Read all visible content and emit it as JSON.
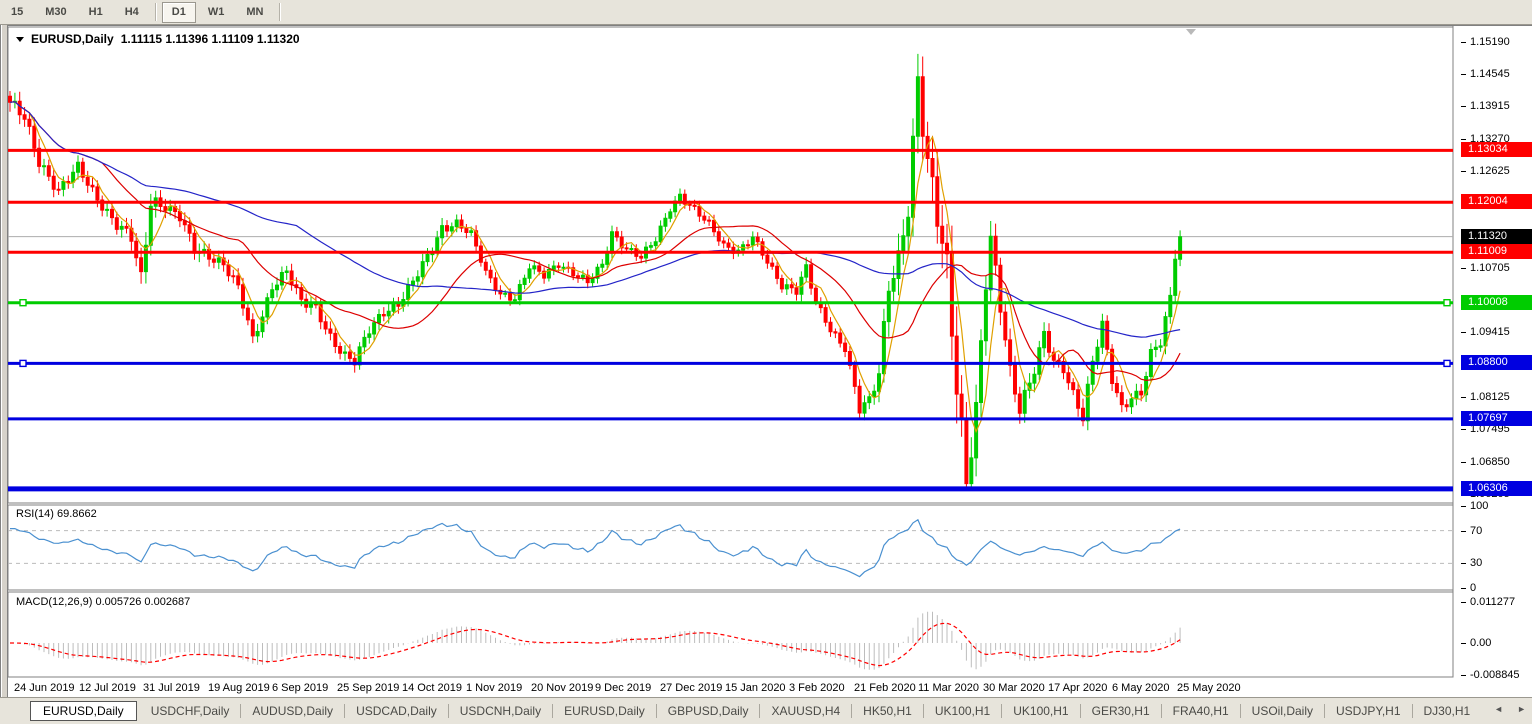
{
  "toolbar": {
    "items": [
      {
        "type": "button",
        "label": "15",
        "active": false
      },
      {
        "type": "button",
        "label": "M30",
        "active": false
      },
      {
        "type": "button",
        "label": "H1",
        "active": false
      },
      {
        "type": "button",
        "label": "H4",
        "active": false
      },
      {
        "type": "separator"
      },
      {
        "type": "button",
        "label": "D1",
        "active": true
      },
      {
        "type": "button",
        "label": "W1",
        "active": false
      },
      {
        "type": "button",
        "label": "MN",
        "active": false
      },
      {
        "type": "separator"
      }
    ]
  },
  "chart": {
    "symbol_label": "EURUSD,Daily",
    "ohlc_label": "1.11115 1.11396 1.11109 1.11320"
  },
  "chart_data": {
    "type": "candlestick",
    "symbol": "EURUSD",
    "timeframe": "Daily",
    "open": "1.11115",
    "high": "1.11396",
    "low": "1.11109",
    "close": "1.11320",
    "bar_count": 242,
    "candle_up_color": "#00CC00",
    "candle_down_color": "#FF0000",
    "price_anchors": [
      [
        0,
        1.1395,
        0.005
      ],
      [
        3,
        1.1368,
        0.005
      ],
      [
        6,
        1.1285,
        0.005
      ],
      [
        10,
        1.1222,
        0.004
      ],
      [
        14,
        1.1268,
        0.004
      ],
      [
        18,
        1.121,
        0.004
      ],
      [
        22,
        1.1155,
        0.004
      ],
      [
        25,
        1.1128,
        0.005
      ],
      [
        27,
        1.1045,
        0.007
      ],
      [
        29,
        1.1205,
        0.007
      ],
      [
        32,
        1.1195,
        0.004
      ],
      [
        35,
        1.117,
        0.004
      ],
      [
        38,
        1.1105,
        0.005
      ],
      [
        41,
        1.1095,
        0.004
      ],
      [
        44,
        1.108,
        0.004
      ],
      [
        47,
        1.103,
        0.004
      ],
      [
        50,
        1.0925,
        0.004
      ],
      [
        52,
        1.0975,
        0.004
      ],
      [
        54,
        1.1035,
        0.004
      ],
      [
        57,
        1.1065,
        0.004
      ],
      [
        60,
        1.1,
        0.004
      ],
      [
        63,
        1.099,
        0.004
      ],
      [
        66,
        1.0935,
        0.004
      ],
      [
        69,
        1.0895,
        0.004
      ],
      [
        71,
        1.0882,
        0.004
      ],
      [
        74,
        1.0945,
        0.004
      ],
      [
        77,
        1.0985,
        0.004
      ],
      [
        80,
        1.1,
        0.004
      ],
      [
        83,
        1.104,
        0.004
      ],
      [
        86,
        1.109,
        0.004
      ],
      [
        89,
        1.115,
        0.004
      ],
      [
        92,
        1.116,
        0.003
      ],
      [
        95,
        1.1135,
        0.003
      ],
      [
        98,
        1.106,
        0.003
      ],
      [
        101,
        1.102,
        0.003
      ],
      [
        104,
        1.101,
        0.003
      ],
      [
        107,
        1.107,
        0.003
      ],
      [
        110,
        1.1055,
        0.003
      ],
      [
        113,
        1.108,
        0.003
      ],
      [
        116,
        1.106,
        0.003
      ],
      [
        119,
        1.104,
        0.003
      ],
      [
        122,
        1.1075,
        0.003
      ],
      [
        124,
        1.114,
        0.004
      ],
      [
        127,
        1.111,
        0.003
      ],
      [
        130,
        1.109,
        0.003
      ],
      [
        133,
        1.1125,
        0.003
      ],
      [
        136,
        1.119,
        0.003
      ],
      [
        138,
        1.1215,
        0.003
      ],
      [
        141,
        1.1185,
        0.003
      ],
      [
        144,
        1.1155,
        0.003
      ],
      [
        147,
        1.1115,
        0.003
      ],
      [
        150,
        1.1105,
        0.003
      ],
      [
        153,
        1.113,
        0.003
      ],
      [
        156,
        1.108,
        0.003
      ],
      [
        159,
        1.1035,
        0.003
      ],
      [
        162,
        1.103,
        0.004
      ],
      [
        164,
        1.107,
        0.004
      ],
      [
        166,
        1.1,
        0.003
      ],
      [
        169,
        1.0945,
        0.003
      ],
      [
        172,
        1.0912,
        0.003
      ],
      [
        174,
        1.0835,
        0.004
      ],
      [
        175,
        1.0792,
        0.004
      ],
      [
        177,
        1.0805,
        0.004
      ],
      [
        179,
        1.0855,
        0.006
      ],
      [
        181,
        1.103,
        0.008
      ],
      [
        183,
        1.109,
        0.009
      ],
      [
        185,
        1.12,
        0.01
      ],
      [
        187,
        1.1445,
        0.012
      ],
      [
        189,
        1.127,
        0.013
      ],
      [
        191,
        1.1165,
        0.013
      ],
      [
        193,
        1.106,
        0.015
      ],
      [
        195,
        1.085,
        0.016
      ],
      [
        197,
        1.0655,
        0.012
      ],
      [
        199,
        1.079,
        0.01
      ],
      [
        201,
        1.104,
        0.009
      ],
      [
        202,
        1.112,
        0.008
      ],
      [
        204,
        1.099,
        0.007
      ],
      [
        206,
        1.0865,
        0.006
      ],
      [
        208,
        1.0795,
        0.006
      ],
      [
        211,
        1.087,
        0.005
      ],
      [
        213,
        1.0935,
        0.005
      ],
      [
        215,
        1.088,
        0.004
      ],
      [
        217,
        1.0868,
        0.004
      ],
      [
        219,
        1.0822,
        0.004
      ],
      [
        221,
        1.0778,
        0.005
      ],
      [
        223,
        1.0885,
        0.005
      ],
      [
        225,
        1.0955,
        0.004
      ],
      [
        227,
        1.0845,
        0.004
      ],
      [
        229,
        1.079,
        0.004
      ],
      [
        231,
        1.0815,
        0.004
      ],
      [
        233,
        1.0825,
        0.004
      ],
      [
        235,
        1.09,
        0.004
      ],
      [
        237,
        1.092,
        0.004
      ],
      [
        239,
        1.1005,
        0.005
      ],
      [
        240,
        1.1095,
        0.005
      ],
      [
        241,
        1.1132,
        0.004
      ]
    ],
    "x_labels": [
      "24 Jun 2019",
      "12 Jul 2019",
      "31 Jul 2019",
      "19 Aug 2019",
      "6 Sep 2019",
      "25 Sep 2019",
      "14 Oct 2019",
      "1 Nov 2019",
      "20 Nov 2019",
      "9 Dec 2019",
      "27 Dec 2019",
      "15 Jan 2020",
      "3 Feb 2020",
      "21 Feb 2020",
      "11 Mar 2020",
      "30 Mar 2020",
      "17 Apr 2020",
      "6 May 2020",
      "25 May 2020"
    ],
    "y_axis_labels": [
      {
        "text": "1.15190",
        "price": 1.1519
      },
      {
        "text": "1.14545",
        "price": 1.14545
      },
      {
        "text": "1.13915",
        "price": 1.13915
      },
      {
        "text": "1.13270",
        "price": 1.1327
      },
      {
        "text": "1.12625",
        "price": 1.12625
      },
      {
        "text": "1.10705",
        "price": 1.10705
      },
      {
        "text": "1.09415",
        "price": 1.09415
      },
      {
        "text": "1.08125",
        "price": 1.08125
      },
      {
        "text": "1.07495",
        "price": 1.07495
      },
      {
        "text": "1.06850",
        "price": 1.0685
      },
      {
        "text": "1.06205",
        "price": 1.06205
      }
    ],
    "h_lines": [
      {
        "label": "1.13034",
        "price": 1.13034,
        "color": "#FF0000",
        "thickness": 3,
        "handles": false
      },
      {
        "label": "1.12004",
        "price": 1.12004,
        "color": "#FF0000",
        "thickness": 3,
        "handles": false
      },
      {
        "label": "1.11009",
        "price": 1.11009,
        "color": "#FF0000",
        "thickness": 3,
        "handles": false
      },
      {
        "label": "1.10008",
        "price": 1.10008,
        "color": "#00CC00",
        "thickness": 3,
        "handles": true
      },
      {
        "label": "1.08800",
        "price": 1.088,
        "color": "#0000E0",
        "thickness": 3,
        "handles": true
      },
      {
        "label": "1.07697",
        "price": 1.07697,
        "color": "#0000E0",
        "thickness": 3,
        "handles": false
      },
      {
        "label": "1.06306",
        "price": 1.06306,
        "color": "#0000E0",
        "thickness": 5,
        "handles": false
      }
    ],
    "current_price": {
      "label": "1.11320",
      "price": 1.1132,
      "line_color": "#ADADAD",
      "badge_color": "#000000"
    },
    "moving_averages": [
      {
        "name": "fast",
        "period": 5,
        "color": "#E0A000"
      },
      {
        "name": "medium",
        "period": 20,
        "color": "#DD0000"
      },
      {
        "name": "slow",
        "period": 60,
        "color": "#2424C8"
      }
    ],
    "indicators": {
      "rsi": {
        "label": "RSI(14) 69.8662",
        "period": 14,
        "value": 69.8662,
        "levels": [
          70,
          30
        ],
        "scale": [
          {
            "text": "100",
            "value": 100
          },
          {
            "text": "70",
            "value": 70
          },
          {
            "text": "30",
            "value": 30
          },
          {
            "text": "0",
            "value": 0
          }
        ],
        "line_color": "#4A90D0"
      },
      "macd": {
        "label": "MACD(12,26,9) 0.005726 0.002687",
        "fast": 12,
        "slow": 26,
        "signal": 9,
        "value": 0.005726,
        "signal_value": 0.002687,
        "scale": [
          {
            "text": "0.011277",
            "value": 0.011277
          },
          {
            "text": "0.00",
            "value": 0
          },
          {
            "text": "-0.008845",
            "value": -0.008845
          }
        ],
        "histogram_color": "#BDBDBD",
        "signal_color": "#FF0000"
      }
    }
  },
  "tabs": {
    "items": [
      {
        "label": "EURUSD,Daily",
        "active": true
      },
      {
        "label": "USDCHF,Daily",
        "active": false
      },
      {
        "label": "AUDUSD,Daily",
        "active": false
      },
      {
        "label": "USDCAD,Daily",
        "active": false
      },
      {
        "label": "USDCNH,Daily",
        "active": false
      },
      {
        "label": "EURUSD,Daily",
        "active": false
      },
      {
        "label": "GBPUSD,Daily",
        "active": false
      },
      {
        "label": "XAUUSD,H4",
        "active": false
      },
      {
        "label": "HK50,H1",
        "active": false
      },
      {
        "label": "UK100,H1",
        "active": false
      },
      {
        "label": "UK100,H1",
        "active": false
      },
      {
        "label": "GER30,H1",
        "active": false
      },
      {
        "label": "FRA40,H1",
        "active": false
      },
      {
        "label": "USOil,Daily",
        "active": false
      },
      {
        "label": "USDJPY,H1",
        "active": false
      },
      {
        "label": "DJ30,H1",
        "active": false
      }
    ],
    "scroll_left": "◄",
    "scroll_right": "►"
  }
}
